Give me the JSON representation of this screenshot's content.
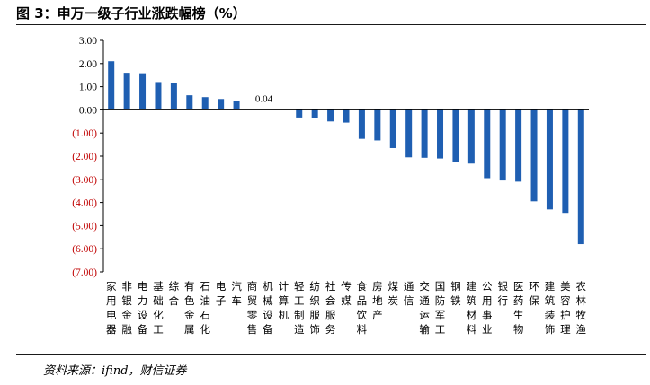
{
  "figure": {
    "title": "图 3：申万一级子行业涨跌幅榜（%）",
    "source": "资料来源：ifind，财信证券"
  },
  "colors": {
    "bar": "#1f5fb2",
    "negative_tick": "#c00000",
    "positive_tick": "#000000",
    "axis": "#000000"
  },
  "chart_data": {
    "type": "bar",
    "title": "",
    "xlabel": "",
    "ylabel": "",
    "ylim": [
      -7,
      3
    ],
    "yticks": [
      3,
      2,
      1,
      0,
      -1,
      -2,
      -3,
      -4,
      -5,
      -6,
      -7
    ],
    "ytick_labels": [
      "3.00",
      "2.00",
      "1.00",
      "0.00",
      "(1.00)",
      "(2.00)",
      "(3.00)",
      "(4.00)",
      "(5.00)",
      "(6.00)",
      "(7.00)"
    ],
    "grid": false,
    "legend": "none",
    "categories": [
      "家用电器",
      "非银金融",
      "电力设备",
      "基础化工",
      "综合",
      "有色金属",
      "石油石化",
      "电子",
      "汽车",
      "商贸零售",
      "机械设备",
      "计算机",
      "轻工制造",
      "纺织服饰",
      "社会服务",
      "传媒",
      "食品饮料",
      "房地产",
      "煤炭",
      "通信",
      "交通运输",
      "国防军工",
      "钢铁",
      "建筑材料",
      "公用事业",
      "银行",
      "医药生物",
      "环保",
      "建筑装饰",
      "美容护理",
      "农林牧渔"
    ],
    "values": [
      2.1,
      1.6,
      1.58,
      1.2,
      1.17,
      0.63,
      0.55,
      0.47,
      0.4,
      0.04,
      0.0,
      0.0,
      -0.33,
      -0.36,
      -0.5,
      -0.55,
      -1.25,
      -1.32,
      -1.65,
      -2.05,
      -2.07,
      -2.1,
      -2.25,
      -2.32,
      -2.95,
      -3.05,
      -3.1,
      -3.95,
      -4.3,
      -4.45,
      -5.8
    ],
    "data_labels": [
      {
        "index": 9,
        "text": "0.04"
      }
    ]
  }
}
